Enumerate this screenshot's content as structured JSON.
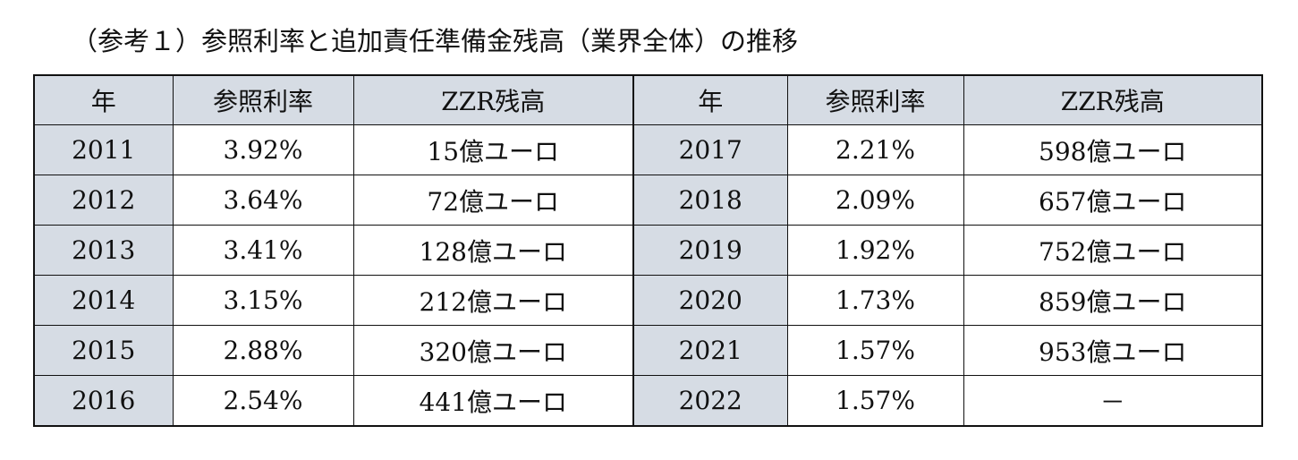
{
  "title": "（参考１）参照利率と追加責任準備金残高（業界全体）の推移",
  "table": {
    "headers": [
      "年",
      "参照利率",
      "ZZR残高",
      "年",
      "参照利率",
      "ZZR残高"
    ],
    "rows": [
      [
        "2011",
        "3.92%",
        "15億ユーロ",
        "2017",
        "2.21%",
        "598億ユーロ"
      ],
      [
        "2012",
        "3.64%",
        "72億ユーロ",
        "2018",
        "2.09%",
        "657億ユーロ"
      ],
      [
        "2013",
        "3.41%",
        "128億ユーロ",
        "2019",
        "1.92%",
        "752億ユーロ"
      ],
      [
        "2014",
        "3.15%",
        "212億ユーロ",
        "2020",
        "1.73%",
        "859億ユーロ"
      ],
      [
        "2015",
        "2.88%",
        "320億ユーロ",
        "2021",
        "1.57%",
        "953億ユーロ"
      ],
      [
        "2016",
        "2.54%",
        "441億ユーロ",
        "2022",
        "1.57%",
        "－"
      ]
    ]
  },
  "colors": {
    "header_fill": "#d6dce4",
    "year_fill": "#d6dce4",
    "border": "#111111"
  }
}
